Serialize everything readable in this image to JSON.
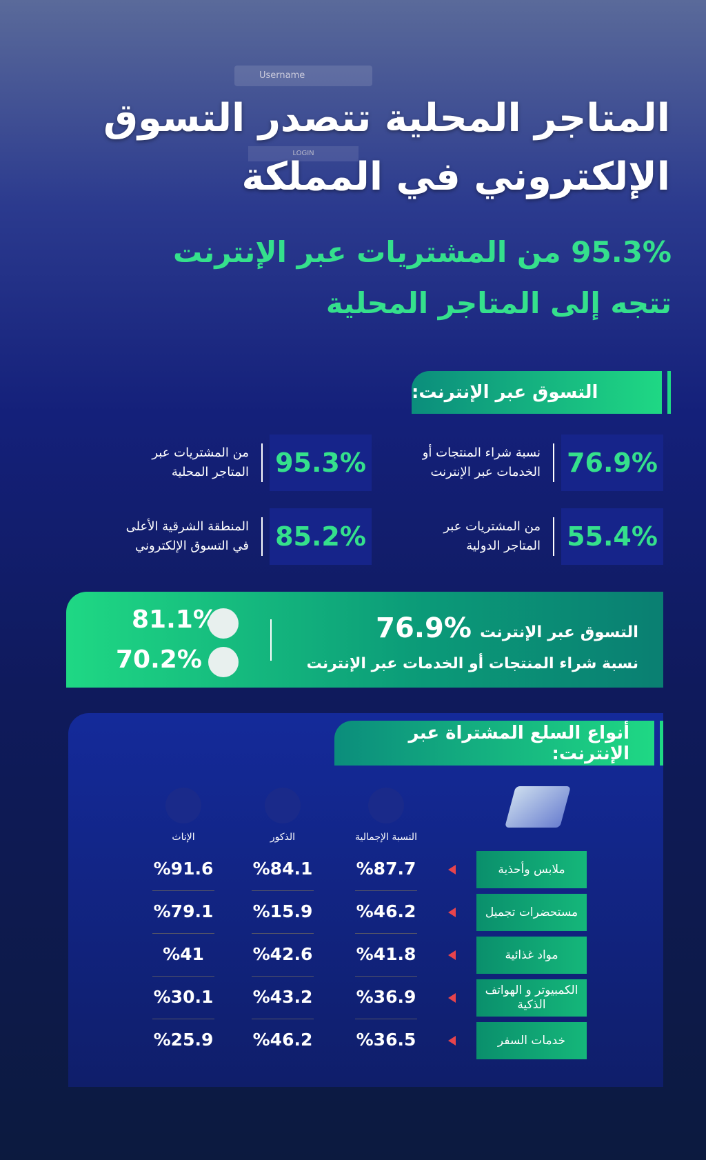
{
  "background": {
    "username": "Username",
    "login": "LOGIN"
  },
  "header": {
    "title": [
      "المتاجر المحلية تتصدر التسوق",
      "الإلكتروني في المملكة"
    ],
    "subtitle": [
      "95.3% من المشتريات عبر الإنترنت",
      "تتجه إلى المتاجر المحلية"
    ]
  },
  "online": {
    "heading": "التسوق عبر الإنترنت:",
    "stats": [
      {
        "value": "76.9%",
        "label": [
          "نسبة شراء المنتجات أو",
          "الخدمات عبر الإنترنت"
        ]
      },
      {
        "value": "95.3%",
        "label": [
          "من المشتريات عبر",
          "المتاجر المحلية"
        ]
      },
      {
        "value": "55.4%",
        "label": [
          "من المشتريات عبر",
          "المتاجر الدولية"
        ]
      },
      {
        "value": "85.2%",
        "label": [
          "المنطقة الشرقية الأعلى",
          "في التسوق الإلكتروني"
        ]
      }
    ]
  },
  "banner": {
    "title": "التسوق عبر الإنترنت",
    "value": "76.9%",
    "subtitle": "نسبة شراء المنتجات أو الخدمات عبر الإنترنت",
    "male": "81.1%",
    "female": "70.2%"
  },
  "goods": {
    "heading": "أنواع السلع المشتراة عبر الإنترنت:",
    "columns": [
      "النسبة الإجمالية",
      "الذكور",
      "الإناث"
    ],
    "rows": [
      [
        "ملابس وأحذية",
        "%87.7",
        "%84.1",
        "%91.6"
      ],
      [
        "مستحضرات تجميل",
        "%46.2",
        "%15.9",
        "%79.1"
      ],
      [
        "مواد غذائية",
        "%41.8",
        "%42.6",
        "%41"
      ],
      [
        "الكمبيوتر و الهواتف الذكية",
        "%36.9",
        "%43.2",
        "%30.1"
      ],
      [
        "خدمات السفر",
        "%36.5",
        "%46.2",
        "%25.9"
      ]
    ]
  }
}
